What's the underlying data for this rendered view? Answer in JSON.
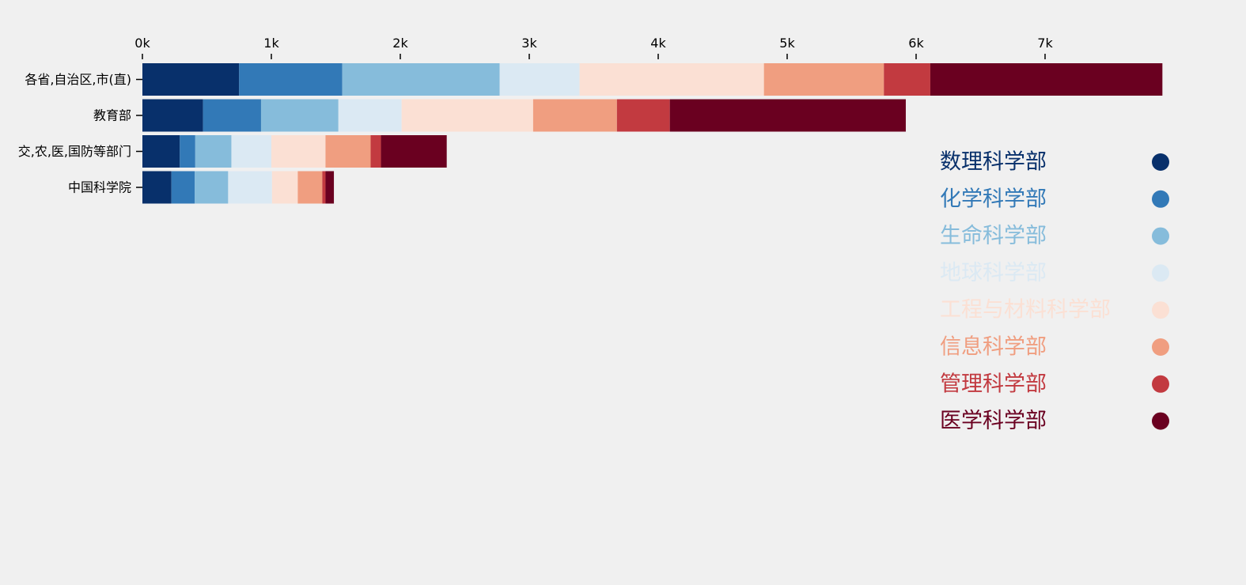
{
  "chart_data": {
    "type": "bar",
    "orientation": "horizontal",
    "stacked": true,
    "xlim": [
      0,
      8000
    ],
    "x_ticks": [
      0,
      1000,
      2000,
      3000,
      4000,
      5000,
      6000,
      7000
    ],
    "x_tick_labels": [
      "0k",
      "1k",
      "2k",
      "3k",
      "4k",
      "5k",
      "6k",
      "7k"
    ],
    "x_axis_position": "top",
    "grid": false,
    "legend_position": "right",
    "categories": [
      "各省,自治区,市(直)",
      "教育部",
      "交,农,医,国防等部门",
      "中国科学院"
    ],
    "series": [
      {
        "name": "数理科学部",
        "color": "#08306b",
        "values": [
          750,
          470,
          290,
          225
        ]
      },
      {
        "name": "化学科学部",
        "color": "#3279b7",
        "values": [
          800,
          450,
          120,
          180
        ]
      },
      {
        "name": "生命科学部",
        "color": "#86bcdb",
        "values": [
          1220,
          600,
          280,
          260
        ]
      },
      {
        "name": "地球科学部",
        "color": "#dbe9f3",
        "values": [
          620,
          490,
          310,
          340
        ]
      },
      {
        "name": "工程与材料科学部",
        "color": "#fbe0d4",
        "values": [
          1430,
          1020,
          420,
          200
        ]
      },
      {
        "name": "信息科学部",
        "color": "#f09e80",
        "values": [
          930,
          650,
          350,
          190
        ]
      },
      {
        "name": "管理科学部",
        "color": "#c23a40",
        "values": [
          360,
          410,
          80,
          25
        ]
      },
      {
        "name": "医学科学部",
        "color": "#6a0020",
        "values": [
          1800,
          1830,
          510,
          65
        ]
      }
    ]
  }
}
